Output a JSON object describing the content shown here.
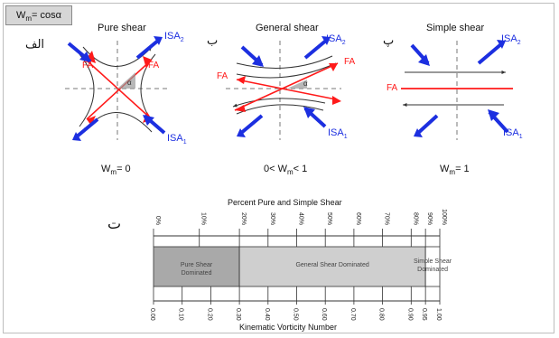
{
  "header_box": {
    "main": "W",
    "sub": "m",
    "rest": "= cosα"
  },
  "panels": [
    {
      "title": "Pure shear",
      "letter": "الف",
      "wm_main": "W",
      "wm_sub": "m",
      "wm_rest": "= 0",
      "isa1": "ISA",
      "isa1_sub": "1",
      "isa2": "ISA",
      "isa2_sub": "2",
      "fa": "FA",
      "alpha": "α"
    },
    {
      "title": "General shear",
      "letter": "ب",
      "wm_pre": "0< W",
      "wm_sub": "m",
      "wm_rest": "< 1",
      "isa1": "ISA",
      "isa1_sub": "1",
      "isa2": "ISA",
      "isa2_sub": "2",
      "fa": "FA",
      "alpha": "α"
    },
    {
      "title": "Simple shear",
      "letter": "پ",
      "wm_main": "W",
      "wm_sub": "m",
      "wm_rest": "= 1",
      "isa1": "ISA",
      "isa1_sub": "1",
      "isa2": "ISA",
      "isa2_sub": "2",
      "fa": "FA"
    }
  ],
  "scale": {
    "letter": "ت",
    "top_title": "Percent Pure and Simple Shear",
    "bottom_title": "Kinematic Vorticity Number",
    "top_ticks": [
      {
        "label": "0%",
        "wk": 0.0
      },
      {
        "label": "10%",
        "wk": 0.16
      },
      {
        "label": "20%",
        "wk": 0.3
      },
      {
        "label": "30%",
        "wk": 0.4
      },
      {
        "label": "40%",
        "wk": 0.5
      },
      {
        "label": "50%",
        "wk": 0.6
      },
      {
        "label": "60%",
        "wk": 0.7
      },
      {
        "label": "70%",
        "wk": 0.8
      },
      {
        "label": "80%",
        "wk": 0.9
      },
      {
        "label": "90%",
        "wk": 0.95
      },
      {
        "label": "100%",
        "wk": 1.0
      }
    ],
    "bottom_ticks": [
      "0.00",
      "0.10",
      "0.20",
      "0.30",
      "0.40",
      "0.50",
      "0.60",
      "0.70",
      "0.80",
      "0.90",
      "0.95",
      "1.00"
    ],
    "bottom_values": [
      0.0,
      0.1,
      0.2,
      0.3,
      0.4,
      0.5,
      0.6,
      0.7,
      0.8,
      0.9,
      0.95,
      1.0
    ],
    "regions": [
      {
        "label": "Pure Shear Dominated",
        "from": 0.0,
        "to": 0.3,
        "color": "#a9a9a9"
      },
      {
        "label": "General Shear Dominated",
        "from": 0.3,
        "to": 0.95,
        "color": "#cfcfcf"
      },
      {
        "label": "Simple Shear Dominated",
        "from": 0.95,
        "to": 1.0,
        "color": "#ffffff"
      }
    ]
  },
  "colors": {
    "isa": "#1c2fe0",
    "fa": "#ff1a1a",
    "dash": "#777777",
    "line": "#3a3a3a"
  }
}
